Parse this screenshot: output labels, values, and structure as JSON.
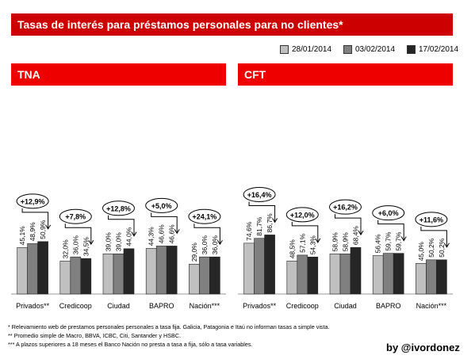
{
  "title": "Tasas de interés para préstamos personales para no clientes*",
  "legend": {
    "items": [
      {
        "label": "28/01/2014",
        "color": "#c0c0c0"
      },
      {
        "label": "03/02/2014",
        "color": "#808080"
      },
      {
        "label": "17/02/2014",
        "color": "#262626"
      }
    ]
  },
  "colors": {
    "header_dark": "#cc0000",
    "header_bright": "#ee0000"
  },
  "chart_data": [
    {
      "type": "bar",
      "title": "TNA",
      "categories": [
        "Privados**",
        "Credicoop",
        "Ciudad",
        "BAPRO",
        "Nación***"
      ],
      "series": [
        {
          "name": "28/01/2014",
          "values": [
            45.1,
            32.0,
            39.0,
            44.3,
            29.0
          ],
          "labels": [
            "45,1%",
            "32,0%",
            "39,0%",
            "44,3%",
            "29,0%"
          ]
        },
        {
          "name": "03/02/2014",
          "values": [
            48.9,
            36.0,
            39.0,
            46.6,
            36.0
          ],
          "labels": [
            "48,9%",
            "36,0%",
            "39,0%",
            "46,6%",
            "36,0%"
          ]
        },
        {
          "name": "17/02/2014",
          "values": [
            50.9,
            34.5,
            44.0,
            46.6,
            36.0
          ],
          "labels": [
            "50,9%",
            "34,5%",
            "44,0%",
            "46,6%",
            "36,0%"
          ]
        }
      ],
      "changes": [
        "+12,9%",
        "+7,8%",
        "+12,8%",
        "+5,0%",
        "+24,1%"
      ],
      "ylim": [
        0,
        65
      ]
    },
    {
      "type": "bar",
      "title": "CFT",
      "categories": [
        "Privados**",
        "Credicoop",
        "Ciudad",
        "BAPRO",
        "Nación***"
      ],
      "series": [
        {
          "name": "28/01/2014",
          "values": [
            74.6,
            48.5,
            58.9,
            56.4,
            45.0
          ],
          "labels": [
            "74,6%",
            "48,5%",
            "58,9%",
            "56,4%",
            "45,0%"
          ]
        },
        {
          "name": "03/02/2014",
          "values": [
            81.7,
            57.1,
            58.9,
            59.7,
            50.2
          ],
          "labels": [
            "81,7%",
            "57,1%",
            "58,9%",
            "59,7%",
            "50,2%"
          ]
        },
        {
          "name": "17/02/2014",
          "values": [
            86.7,
            54.3,
            68.4,
            59.7,
            50.2
          ],
          "labels": [
            "86,7%",
            "54,3%",
            "68,4%",
            "59,7%",
            "50,2%"
          ]
        }
      ],
      "changes": [
        "+16,4%",
        "+12,0%",
        "+16,2%",
        "+6,0%",
        "+11,6%"
      ],
      "ylim": [
        0,
        110
      ]
    }
  ],
  "footnotes": [
    "  * Relevamiento web de prestamos personales personales  a tasa fija. Galicia, Patagonia e Itaú no informan tasas a simple vista.",
    "  ** Promedio simple de Macro, BBVA, ICBC, Citi, Santander y HSBC.",
    "*** A plazos superiores  a 18 meses el Banco Nación no presta a tasa a fija, sólo a tasa variables."
  ],
  "credit": "by @ivordonez"
}
